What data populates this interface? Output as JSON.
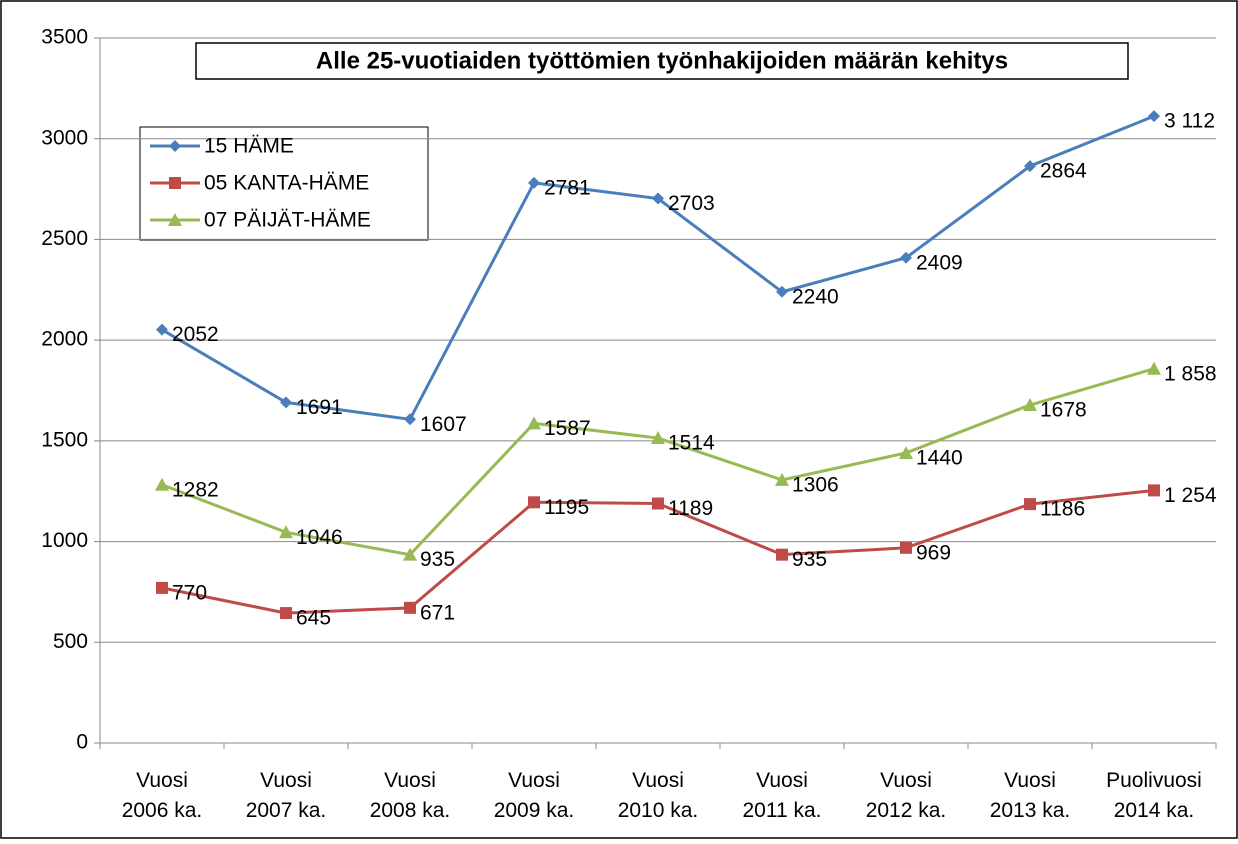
{
  "chart_data": {
    "type": "line",
    "title": "Alle 25-vuotiaiden työttömien työnhakijoiden määrän kehitys",
    "categories": [
      "Vuosi 2006 ka.",
      "Vuosi 2007 ka.",
      "Vuosi 2008 ka.",
      "Vuosi 2009 ka.",
      "Vuosi 2010 ka.",
      "Vuosi 2011 ka.",
      "Vuosi 2012 ka.",
      "Vuosi 2013 ka.",
      "Puolivuosi 2014 ka."
    ],
    "series": [
      {
        "name": "15 HÄME",
        "color": "#4a7ebb",
        "marker": "diamond",
        "values": [
          2052,
          1691,
          1607,
          2781,
          2703,
          2240,
          2409,
          2864,
          3112
        ],
        "value_labels": [
          "2052",
          "1691",
          "1607",
          "2781",
          "2703",
          "2240",
          "2409",
          "2864",
          "3 112"
        ]
      },
      {
        "name": "05 KANTA-HÄME",
        "color": "#be4b48",
        "marker": "square",
        "values": [
          770,
          645,
          671,
          1195,
          1189,
          935,
          969,
          1186,
          1254
        ],
        "value_labels": [
          "770",
          "645",
          "671",
          "1195",
          "1189",
          "935",
          "969",
          "1186",
          "1 254"
        ]
      },
      {
        "name": "07 PÄIJÄT-HÄME",
        "color": "#98b954",
        "marker": "triangle",
        "values": [
          1282,
          1046,
          935,
          1587,
          1514,
          1306,
          1440,
          1678,
          1858
        ],
        "value_labels": [
          "1282",
          "1046",
          "935",
          "1587",
          "1514",
          "1306",
          "1440",
          "1678",
          "1 858"
        ]
      }
    ],
    "ylim": [
      0,
      3500
    ],
    "yticks": [
      0,
      500,
      1000,
      1500,
      2000,
      2500,
      3000,
      3500
    ],
    "grid": true,
    "legend": "upper left"
  }
}
